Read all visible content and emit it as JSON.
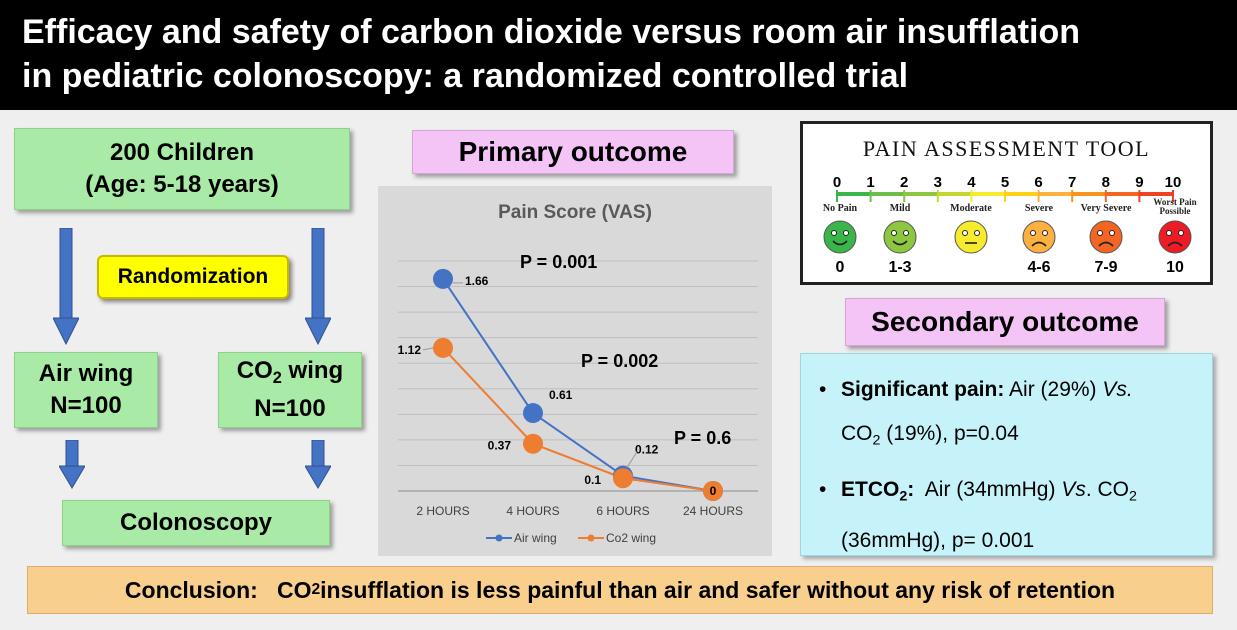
{
  "title_lines": [
    "Efficacy and safety of carbon dioxide versus room air insufflation",
    "in pediatric colonoscopy: a randomized controlled trial"
  ],
  "flow": {
    "children": [
      "200 Children",
      "(Age: 5-18 years)"
    ],
    "randomization": "Randomization",
    "air_wing": [
      "Air wing",
      "N=100"
    ],
    "co2_wing": {
      "prefix": "CO",
      "sub": "2",
      "suffix": " wing",
      "n": "N=100"
    },
    "colonoscopy": "Colonoscopy",
    "arrow_color": "#4472c4"
  },
  "primary_outcome": "Primary outcome",
  "secondary_outcome": "Secondary outcome",
  "chart_data": {
    "type": "line",
    "title": "Pain Score (VAS)",
    "categories": [
      "2 HOURS",
      "4 HOURS",
      "6 HOURS",
      "24 HOURS"
    ],
    "ylim": [
      0,
      1.8
    ],
    "grid": true,
    "legend_placement": "bottom",
    "series": [
      {
        "name": "Air wing",
        "values": [
          1.66,
          0.61,
          0.12,
          0
        ],
        "labels": [
          "1.66",
          "0.61",
          "0.12",
          ""
        ],
        "color": "#4472c4"
      },
      {
        "name": "Co2 wing",
        "values": [
          1.12,
          0.37,
          0.1,
          0
        ],
        "labels": [
          "1.12",
          "0.37",
          "0.1",
          "0"
        ],
        "color": "#ed7d31"
      }
    ],
    "annotations": [
      "P = 0.001",
      "P = 0.002",
      "P = 0.6"
    ]
  },
  "pain_tool": {
    "title": "PAIN ASSESSMENT TOOL",
    "numbers": [
      "0",
      "1",
      "2",
      "3",
      "4",
      "5",
      "6",
      "7",
      "8",
      "9",
      "10"
    ],
    "faces": [
      {
        "label": "No Pain",
        "color": "#39b54a"
      },
      {
        "label": "Mild",
        "color": "#8dc63f"
      },
      {
        "label": "Moderate",
        "color": "#f7ec2c"
      },
      {
        "label": "Severe",
        "color": "#fbb040"
      },
      {
        "label": "Very Severe",
        "color": "#f26522"
      },
      {
        "label": "Worst Pain Possible",
        "color": "#ed1c24"
      }
    ],
    "ranges": [
      "0",
      "1-3",
      "4-6",
      "7-9",
      "10"
    ]
  },
  "secondary": {
    "b1": {
      "bold": "Significant pain:",
      "text1": " Air (29%) ",
      "vs": "Vs.",
      "co2_prefix": "CO",
      "co2_sub": "2",
      "text2": " (19%), p=0.04"
    },
    "b2": {
      "bold_prefix": "ETCO",
      "bold_sub": "2",
      "bold_suffix": ":",
      "text1": "  Air (34mmHg) ",
      "vs": "Vs",
      "text2": ". CO",
      "sub2": "2",
      "text3": "(36mmHg), p= 0.001"
    }
  },
  "conclusion": {
    "label": "Conclusion:",
    "co2_prefix": "CO",
    "co2_sub": "2",
    "text": " insufflation is less painful than air and safer without any risk of retention"
  }
}
